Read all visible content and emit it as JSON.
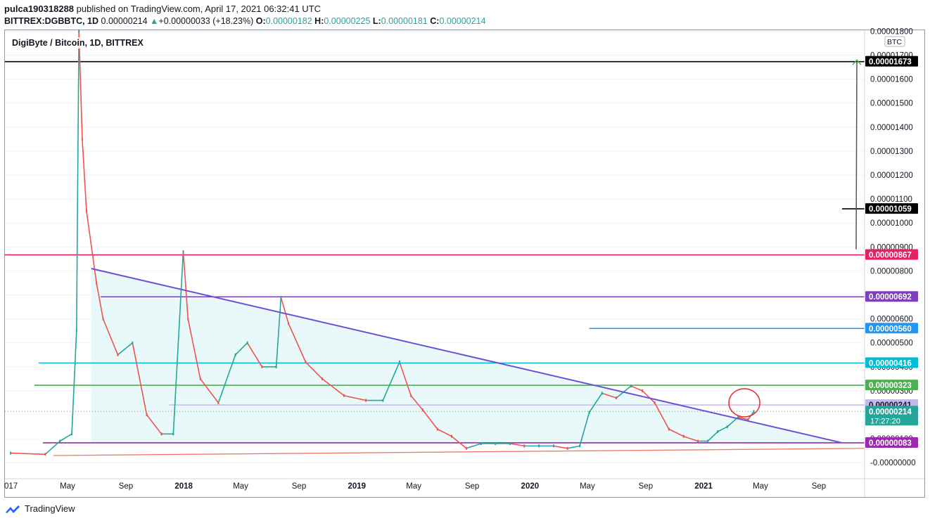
{
  "header": {
    "user": "pulca190318288",
    "published_text": "published on TradingView.com, April 17, 2021 06:32:41 UTC"
  },
  "ohlc": {
    "symbol": "BITTREX:DGBBTC, 1D",
    "last": "0.00000214",
    "change_arrow": "▲",
    "change": "+0.00000033 (+18.23%)",
    "o_label": "O:",
    "o": "0.00000182",
    "h_label": "H:",
    "h": "0.00000225",
    "l_label": "L:",
    "l": "0.00000181",
    "c_label": "C:",
    "c": "0.00000214"
  },
  "legend": {
    "title": "DigiByte / Bitcoin, 1D, BITTREX"
  },
  "footer": {
    "brand": "TradingView"
  },
  "colors": {
    "up": "#26a69a",
    "down": "#ef5350",
    "level_black": "#000000",
    "level_pink": "#e91e63",
    "level_purple": "#7b3fbf",
    "level_blue": "#2196f3",
    "level_cyan": "#00bcd4",
    "level_green": "#4caf50",
    "level_lavender": "#c5b8e8",
    "level_magenta": "#9c27b0",
    "trend_line": "#6a4fd6",
    "support_line": "#ef7b6b",
    "triangle_fill": "#e0f7f7",
    "annotation_circle": "#e53935"
  },
  "chart_data": {
    "type": "line",
    "title": "DigiByte / Bitcoin, 1D, BITTREX",
    "currency": "BTC",
    "ylim": [
      -1.1e-07,
      1.804e-05
    ],
    "x_ticks": [
      "017",
      "May",
      "Sep",
      "2018",
      "May",
      "Sep",
      "2019",
      "May",
      "Sep",
      "2020",
      "May",
      "Sep",
      "2021",
      "May",
      "Sep"
    ],
    "y_ticks": [
      "0.00001800",
      "0.00001700",
      "0.00001600",
      "0.00001500",
      "0.00001400",
      "0.00001300",
      "0.00001200",
      "0.00001100",
      "0.00001000",
      "0.00000900",
      "0.00000800",
      "0.00000700",
      "0.00000600",
      "0.00000500",
      "0.00000400",
      "0.00000300",
      "0.00000200",
      "0.00000100",
      "-0.00000000"
    ],
    "series": [
      {
        "x": [
          "2017-01-01",
          "2017-03-15",
          "2017-04-15",
          "2017-05-10",
          "2017-05-20",
          "2017-05-25",
          "2017-06-01",
          "2017-06-10",
          "2017-07-01",
          "2017-07-15",
          "2017-08-15",
          "2017-09-15",
          "2017-10-15",
          "2017-11-15",
          "2017-12-10",
          "2017-12-31",
          "2018-01-10",
          "2018-02-05",
          "2018-03-15",
          "2018-04-20",
          "2018-05-15",
          "2018-06-15",
          "2018-07-15",
          "2018-07-25",
          "2018-08-10",
          "2018-09-15",
          "2018-10-20",
          "2018-12-05",
          "2019-01-20",
          "2019-02-25",
          "2019-04-01",
          "2019-04-25",
          "2019-05-20",
          "2019-06-20",
          "2019-07-20",
          "2019-08-20",
          "2019-09-20",
          "2019-10-20",
          "2019-11-20",
          "2019-12-20",
          "2020-01-20",
          "2020-02-20",
          "2020-03-20",
          "2020-04-15",
          "2020-05-05",
          "2020-06-01",
          "2020-07-01",
          "2020-08-01",
          "2020-08-25",
          "2020-09-20",
          "2020-10-20",
          "2020-11-20",
          "2020-12-20",
          "2021-01-10",
          "2021-01-31",
          "2021-02-20",
          "2021-03-15",
          "2021-04-05",
          "2021-04-17"
        ],
        "values": [
          4e-07,
          3.5e-07,
          9e-07,
          1.2e-06,
          5.5e-06,
          1.8e-05,
          1.35e-05,
          1.05e-05,
          7.5e-06,
          6e-06,
          4.5e-06,
          5e-06,
          2e-06,
          1.2e-06,
          1.2e-06,
          8.8e-06,
          6e-06,
          3.5e-06,
          2.5e-06,
          4.5e-06,
          5e-06,
          4e-06,
          4e-06,
          6.9e-06,
          5.8e-06,
          4.2e-06,
          3.5e-06,
          2.8e-06,
          2.6e-06,
          2.6e-06,
          4.2e-06,
          2.8e-06,
          2.2e-06,
          1.4e-06,
          1.1e-06,
          6e-07,
          8e-07,
          8e-07,
          8e-07,
          7e-07,
          7e-07,
          7e-07,
          6e-07,
          7e-07,
          2.1e-06,
          2.9e-06,
          2.7e-06,
          3.2e-06,
          3e-06,
          2.5e-06,
          1.4e-06,
          1.1e-06,
          9e-07,
          9e-07,
          1.3e-06,
          1.5e-06,
          1.9e-06,
          1.8e-06,
          2.14e-06
        ]
      }
    ],
    "levels": [
      {
        "value": 1.673e-05,
        "label": "0.00001673",
        "color": "#000000"
      },
      {
        "value": 1.059e-05,
        "label": "0.00001059",
        "color": "#000000"
      },
      {
        "value": 8.67e-06,
        "label": "0.00000867",
        "color": "#e91e63"
      },
      {
        "value": 6.92e-06,
        "label": "0.00000692",
        "color": "#7b3fbf"
      },
      {
        "value": 5.6e-06,
        "label": "0.00000560",
        "color": "#2196f3"
      },
      {
        "value": 4.16e-06,
        "label": "0.00000416",
        "color": "#00bcd4"
      },
      {
        "value": 3.23e-06,
        "label": "0.00000323",
        "color": "#4caf50"
      },
      {
        "value": 2.41e-06,
        "label": "0.00000241",
        "color": "#c5b8e8"
      },
      {
        "value": 2.14e-06,
        "label": "0.00000214",
        "color": "#26a69a"
      },
      {
        "value": 8.3e-07,
        "label": "0.00000083",
        "color": "#9c27b0"
      }
    ],
    "countdown": "17:27:20"
  }
}
